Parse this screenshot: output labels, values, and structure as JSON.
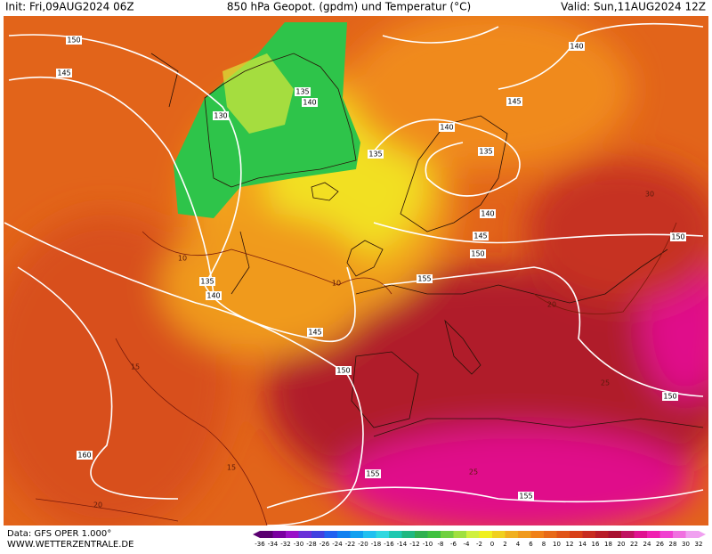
{
  "header": {
    "init": "Init: Fri,09AUG2024 06Z",
    "title": "850 hPa Geopot. (gpdm) und Temperatur (°C)",
    "valid": "Valid: Sun,11AUG2024 12Z"
  },
  "footer": {
    "source": "Data: GFS OPER 1.000°",
    "website": "WWW.WETTERZENTRALE.DE"
  },
  "colorbar": {
    "labels": [
      -36,
      -34,
      -32,
      -30,
      -28,
      -26,
      -24,
      -22,
      -20,
      -18,
      -16,
      -14,
      -12,
      -10,
      -8,
      -6,
      -4,
      -2,
      0,
      2,
      4,
      6,
      8,
      10,
      12,
      14,
      16,
      18,
      20,
      22,
      24,
      26,
      28,
      30,
      32
    ]
  },
  "geopotential_labels": [
    150,
    145,
    130,
    135,
    140,
    135,
    140,
    135,
    145,
    140,
    140,
    145,
    150,
    150,
    155,
    135,
    140,
    145,
    150,
    150,
    160,
    155,
    155
  ],
  "temperature_labels": [
    10,
    10,
    15,
    15,
    20,
    25,
    20,
    25,
    30
  ]
}
